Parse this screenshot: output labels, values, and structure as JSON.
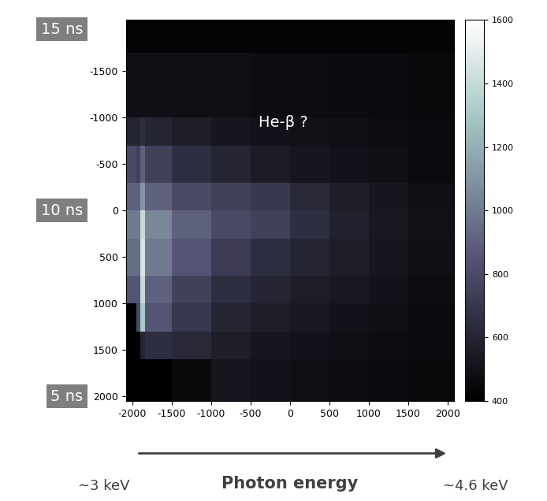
{
  "chart_data": {
    "type": "heatmap",
    "x_edges": [
      -2080,
      -1950,
      -1900,
      -1840,
      -1500,
      -1000,
      -500,
      0,
      500,
      1000,
      1500,
      2080
    ],
    "y_edges": [
      -2048,
      -1700,
      -1000,
      -700,
      -300,
      0,
      300,
      700,
      1000,
      1300,
      1600,
      2048
    ],
    "cells": [
      [
        420,
        420,
        420,
        420,
        420,
        420,
        420,
        420,
        420,
        420,
        420
      ],
      [
        480,
        480,
        480,
        480,
        480,
        480,
        470,
        470,
        460,
        460,
        450
      ],
      [
        600,
        600,
        650,
        600,
        560,
        520,
        500,
        490,
        480,
        470,
        460
      ],
      [
        800,
        750,
        900,
        750,
        650,
        600,
        550,
        520,
        500,
        480,
        460
      ],
      [
        900,
        900,
        1100,
        900,
        800,
        750,
        700,
        620,
        560,
        520,
        480
      ],
      [
        1000,
        1000,
        1400,
        1050,
        900,
        800,
        750,
        650,
        580,
        530,
        490
      ],
      [
        950,
        950,
        1450,
        1000,
        850,
        720,
        650,
        600,
        560,
        520,
        480
      ],
      [
        850,
        850,
        1400,
        900,
        750,
        650,
        600,
        560,
        530,
        500,
        470
      ],
      [
        400,
        800,
        1300,
        850,
        700,
        600,
        560,
        530,
        500,
        480,
        460
      ],
      [
        350,
        350,
        600,
        650,
        620,
        560,
        520,
        500,
        480,
        470,
        460
      ],
      [
        350,
        350,
        350,
        350,
        450,
        520,
        500,
        480,
        470,
        460,
        450
      ]
    ],
    "xlim": [
      -2080,
      2080
    ],
    "ylim": [
      2048,
      -2048
    ],
    "xticks": [
      -2000,
      -1500,
      -1000,
      -500,
      0,
      500,
      1000,
      1500,
      2000
    ],
    "yticks": [
      -1500,
      -1000,
      -500,
      0,
      500,
      1000,
      1500,
      2000
    ],
    "colorbar": {
      "range": [
        400,
        1600
      ],
      "ticks": [
        400,
        600,
        800,
        1000,
        1200,
        1400,
        1600
      ]
    },
    "time_marks": [
      {
        "value": -1950,
        "label": "15 ns"
      },
      {
        "value": 0,
        "label": "10 ns"
      },
      {
        "value": 2000,
        "label": "5 ns"
      }
    ],
    "annotation": "He-β ?",
    "xlabel": "Photon energy",
    "xlabel_ends": [
      "~3 keV",
      "~4.6 keV"
    ]
  }
}
